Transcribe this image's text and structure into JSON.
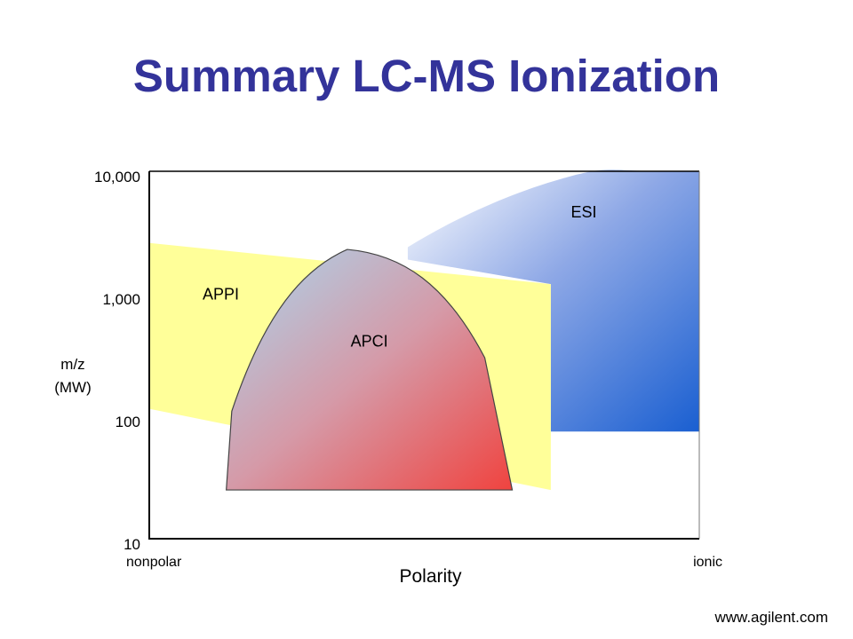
{
  "slide": {
    "title": "Summary LC-MS Ionization",
    "footer": "www.agilent.com"
  },
  "chart_data": {
    "type": "area",
    "title": "",
    "xlabel": "Polarity",
    "ylabel": "m/z (MW)",
    "ylabel_lines": [
      "m/z",
      "(MW)"
    ],
    "x_tick_labels": [
      "nonpolar",
      "ionic"
    ],
    "x_scale": "qualitative",
    "xlim": [
      0,
      1
    ],
    "y_scale": "log",
    "ylim": [
      10,
      10000
    ],
    "y_ticks": [
      10,
      100,
      1000,
      10000
    ],
    "y_tick_labels": [
      "10",
      "100",
      "1,000",
      "10,000"
    ],
    "grid": false,
    "legend": "none",
    "series": [
      {
        "name": "ESI",
        "color": "#1a5fd1",
        "region": [
          [
            0.47,
            2400
          ],
          [
            0.55,
            4000
          ],
          [
            0.65,
            6500
          ],
          [
            0.75,
            8700
          ],
          [
            0.82,
            9700
          ],
          [
            1.0,
            10000
          ],
          [
            1.0,
            75
          ],
          [
            0.73,
            75
          ],
          [
            0.73,
            1200
          ],
          [
            0.47,
            1900
          ]
        ]
      },
      {
        "name": "APPI",
        "color": "#ffff99",
        "region": [
          [
            0.0,
            2600
          ],
          [
            0.73,
            1200
          ],
          [
            0.73,
            25
          ],
          [
            0.0,
            115
          ]
        ]
      },
      {
        "name": "APCI",
        "color": "#e8474a",
        "region": [
          [
            0.14,
            25
          ],
          [
            0.15,
            110
          ],
          [
            0.21,
            700
          ],
          [
            0.28,
            1600
          ],
          [
            0.36,
            2300
          ],
          [
            0.46,
            2100
          ],
          [
            0.54,
            1200
          ],
          [
            0.61,
            300
          ],
          [
            0.66,
            25
          ]
        ]
      }
    ]
  }
}
